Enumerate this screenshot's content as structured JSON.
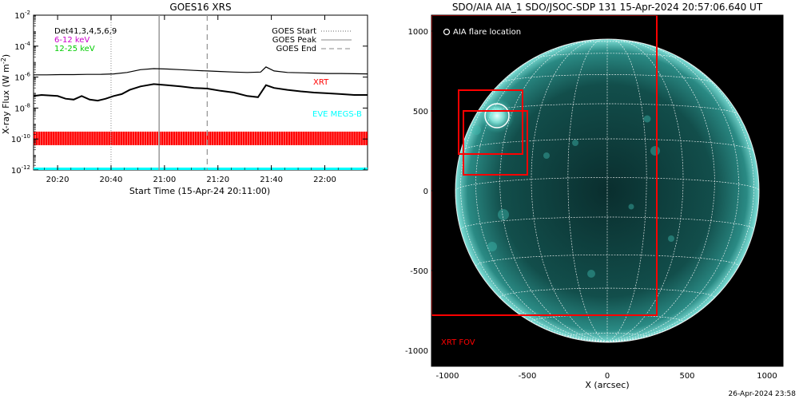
{
  "chart_data": [
    {
      "type": "line",
      "title": "GOES16 XRS",
      "xlabel": "Start Time (15-Apr-24 20:11:00)",
      "ylabel": "X-ray Flux (W m",
      "ylabel_sup": "-2",
      "ylabel_close": ")",
      "y_scale": "log",
      "xlim": [
        "20:11",
        "22:16"
      ],
      "ylim": [
        1e-12,
        0.01
      ],
      "y_tick_labels": [
        {
          "base": "10",
          "exp": "-2",
          "value": 0.01
        },
        {
          "base": "10",
          "exp": "-4",
          "value": 0.0001
        },
        {
          "base": "10",
          "exp": "-6",
          "value": 1e-06
        },
        {
          "base": "10",
          "exp": "-8",
          "value": 1e-08
        },
        {
          "base": "10",
          "exp": "-10",
          "value": 1e-10
        },
        {
          "base": "10",
          "exp": "-12",
          "value": 1e-12
        }
      ],
      "x_tick_labels": [
        "20:20",
        "20:40",
        "21:00",
        "21:20",
        "21:40",
        "22:00"
      ],
      "x_tick_minutes": [
        9,
        29,
        49,
        69,
        89,
        109
      ],
      "legend_left": [
        {
          "text": "Det41,3,4,5,6,9",
          "color": "#000000"
        },
        {
          "text": "6-12 keV",
          "color": "#cc00cc"
        },
        {
          "text": "12-25 keV",
          "color": "#00cc00"
        }
      ],
      "legend_right": [
        {
          "text": "GOES Start",
          "style": "dotted"
        },
        {
          "text": "GOES Peak",
          "style": "solid"
        },
        {
          "text": "GOES End",
          "style": "dashed"
        }
      ],
      "annotations": [
        {
          "text": "XRT",
          "color": "#ff0000"
        },
        {
          "text": "EVE MEGS-B",
          "color": "#00ffff"
        }
      ],
      "vertical_markers_minutes": {
        "start": 29,
        "peak": 47,
        "end": 65
      },
      "series": [
        {
          "color": "#000000",
          "x_minutes": [
            0,
            5,
            10,
            15,
            20,
            25,
            30,
            35,
            40,
            45,
            50,
            55,
            60,
            65,
            70,
            75,
            80,
            85,
            87,
            90,
            95,
            100,
            105,
            110,
            115,
            125
          ],
          "values": [
            1.4e-06,
            1.4e-06,
            1.45e-06,
            1.45e-06,
            1.5e-06,
            1.5e-06,
            1.6e-06,
            2e-06,
            3e-06,
            3.5e-06,
            3.3e-06,
            3e-06,
            2.7e-06,
            2.5e-06,
            2.3e-06,
            2.1e-06,
            2e-06,
            2.1e-06,
            4.5e-06,
            2.5e-06,
            2e-06,
            1.9e-06,
            1.8e-06,
            1.7e-06,
            1.7e-06,
            1.6e-06
          ]
        },
        {
          "color": "#000000",
          "x_minutes": [
            0,
            3,
            6,
            9,
            12,
            15,
            18,
            21,
            24,
            27,
            30,
            33,
            36,
            40,
            45,
            50,
            55,
            60,
            65,
            70,
            75,
            80,
            84,
            87,
            90,
            95,
            100,
            105,
            110,
            115,
            120,
            125
          ],
          "values": [
            6e-08,
            7e-08,
            6.5e-08,
            6e-08,
            4e-08,
            3.5e-08,
            6e-08,
            3.5e-08,
            3e-08,
            4e-08,
            6e-08,
            8e-08,
            1.5e-07,
            2.5e-07,
            3.5e-07,
            3e-07,
            2.5e-07,
            2e-07,
            1.8e-07,
            1.3e-07,
            1e-07,
            6e-08,
            5e-08,
            3e-07,
            2e-07,
            1.5e-07,
            1.2e-07,
            1e-07,
            9e-08,
            8e-08,
            7e-08,
            7e-08
          ]
        }
      ]
    },
    {
      "type": "image",
      "title": "SDO/AIA AIA_1 SDO/JSOC-SDP 131 15-Apr-2024 20:57:06.640 UT",
      "xlabel": "X (arcsec)",
      "xlim": [
        -1100,
        1100
      ],
      "ylim": [
        -1100,
        1100
      ],
      "x_tick_labels": [
        "-1000",
        "-500",
        "0",
        "500",
        "1000"
      ],
      "x_tick_values": [
        -1000,
        -500,
        0,
        500,
        1000
      ],
      "y_tick_labels": [
        "1000",
        "500",
        "0",
        "-500",
        "-1000"
      ],
      "y_tick_values": [
        1000,
        500,
        0,
        -500,
        -1000
      ],
      "legend": "AIA flare location",
      "xrt_fov_label": "XRT FOV",
      "xrt_fov_box": {
        "x0": -1100,
        "x1": 310,
        "y0": -780,
        "y1": 1100
      },
      "flare_location": {
        "x": -690,
        "y": 470
      },
      "boxes": [
        {
          "x0": -930,
          "x1": -530,
          "y0": 230,
          "y1": 630
        },
        {
          "x0": -900,
          "x1": -500,
          "y0": 100,
          "y1": 500
        }
      ],
      "sun_radius_arcsec": 950
    }
  ],
  "footer_date": "26-Apr-2024 23:58"
}
